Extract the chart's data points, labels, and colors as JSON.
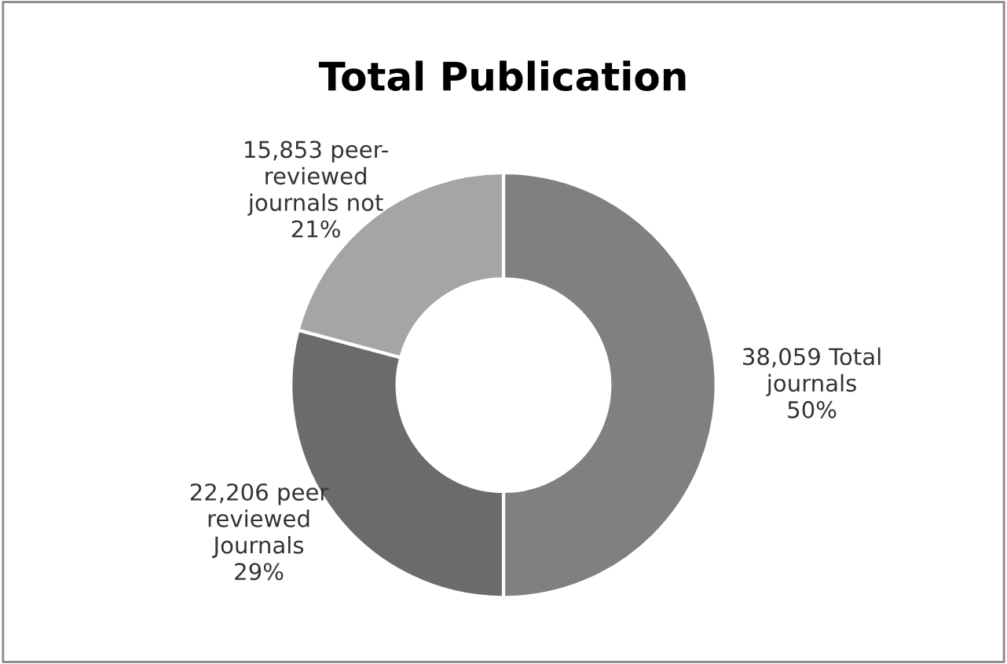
{
  "chart_data": {
    "type": "donut",
    "title": "Total Publication",
    "categories": [
      null,
      null,
      null
    ],
    "values": [
      38059,
      22206,
      15853
    ],
    "colors": [
      "#808080",
      "#6b6b6b",
      "#a5a5a5"
    ],
    "value_labels": [
      "38,059 Total\njournals\n50%",
      "22,206 peer\nreviewed\nJournals\n29%",
      "15,853 peer-\nreviewed\njournals not\n21%"
    ],
    "legend": false
  }
}
